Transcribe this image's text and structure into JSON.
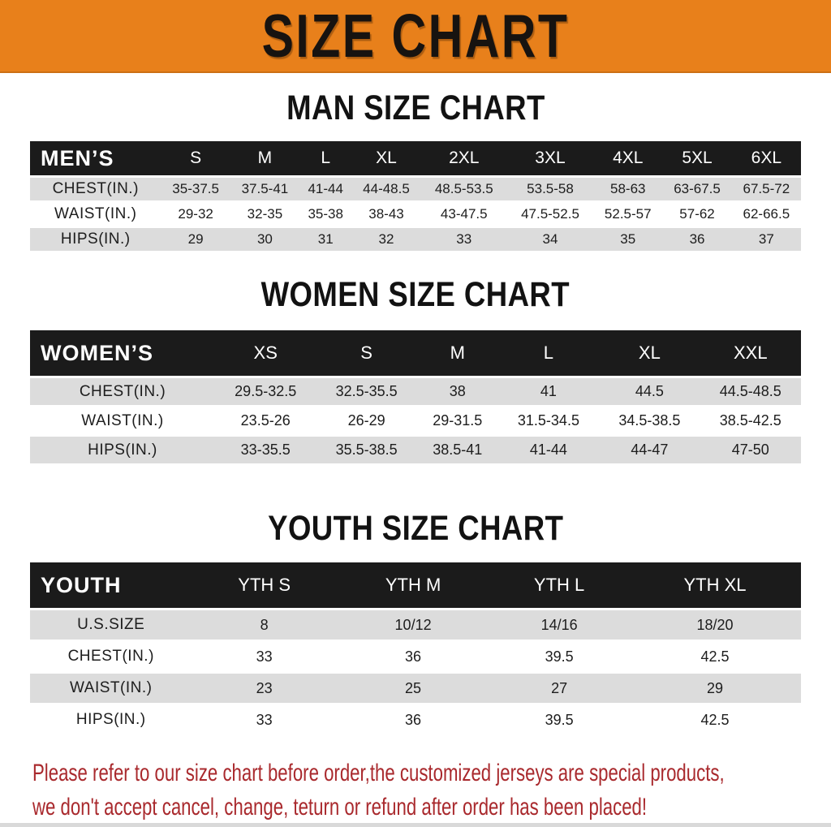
{
  "banner": {
    "title": "SIZE CHART",
    "bg_color": "#e8801b",
    "text_color": "#171310"
  },
  "colors": {
    "table_header_bg": "#1b1b1b",
    "table_header_text": "#ffffff",
    "row_stripe_gray": "#dcdcdc",
    "row_stripe_white": "#ffffff",
    "note_red": "#a9292d"
  },
  "sections": [
    {
      "heading": "MAN SIZE CHART",
      "table": {
        "header": [
          "MEN’S",
          "S",
          "M",
          "L",
          "XL",
          "2XL",
          "3XL",
          "4XL",
          "5XL",
          "6XL"
        ],
        "rows": [
          [
            "CHEST(IN.)",
            "35-37.5",
            "37.5-41",
            "41-44",
            "44-48.5",
            "48.5-53.5",
            "53.5-58",
            "58-63",
            "63-67.5",
            "67.5-72"
          ],
          [
            "WAIST(IN.)",
            "29-32",
            "32-35",
            "35-38",
            "38-43",
            "43-47.5",
            "47.5-52.5",
            "52.5-57",
            "57-62",
            "62-66.5"
          ],
          [
            "HIPS(IN.)",
            "29",
            "30",
            "31",
            "32",
            "33",
            "34",
            "35",
            "36",
            "37"
          ]
        ]
      }
    },
    {
      "heading": "WOMEN SIZE CHART",
      "table": {
        "header": [
          "WOMEN’S",
          "XS",
          "S",
          "M",
          "L",
          "XL",
          "XXL"
        ],
        "rows": [
          [
            "CHEST(IN.)",
            "29.5-32.5",
            "32.5-35.5",
            "38",
            "41",
            "44.5",
            "44.5-48.5"
          ],
          [
            "WAIST(IN.)",
            "23.5-26",
            "26-29",
            "29-31.5",
            "31.5-34.5",
            "34.5-38.5",
            "38.5-42.5"
          ],
          [
            "HIPS(IN.)",
            "33-35.5",
            "35.5-38.5",
            "38.5-41",
            "41-44",
            "44-47",
            "47-50"
          ]
        ]
      }
    },
    {
      "heading": "YOUTH SIZE CHART",
      "table": {
        "header": [
          "YOUTH",
          "YTH S",
          "YTH M",
          "YTH L",
          "YTH XL"
        ],
        "rows": [
          [
            "U.S.SIZE",
            "8",
            "10/12",
            "14/16",
            "18/20"
          ],
          [
            "CHEST(IN.)",
            "33",
            "36",
            "39.5",
            "42.5"
          ],
          [
            "WAIST(IN.)",
            "23",
            "25",
            "27",
            "29"
          ],
          [
            "HIPS(IN.)",
            "33",
            "36",
            "39.5",
            "42.5"
          ]
        ]
      }
    }
  ],
  "footer_note": {
    "lines": [
      "Please refer to our size chart before order,the customized jerseys are special products,",
      "we don't accept cancel, change, teturn or refund after order has been placed!"
    ]
  }
}
